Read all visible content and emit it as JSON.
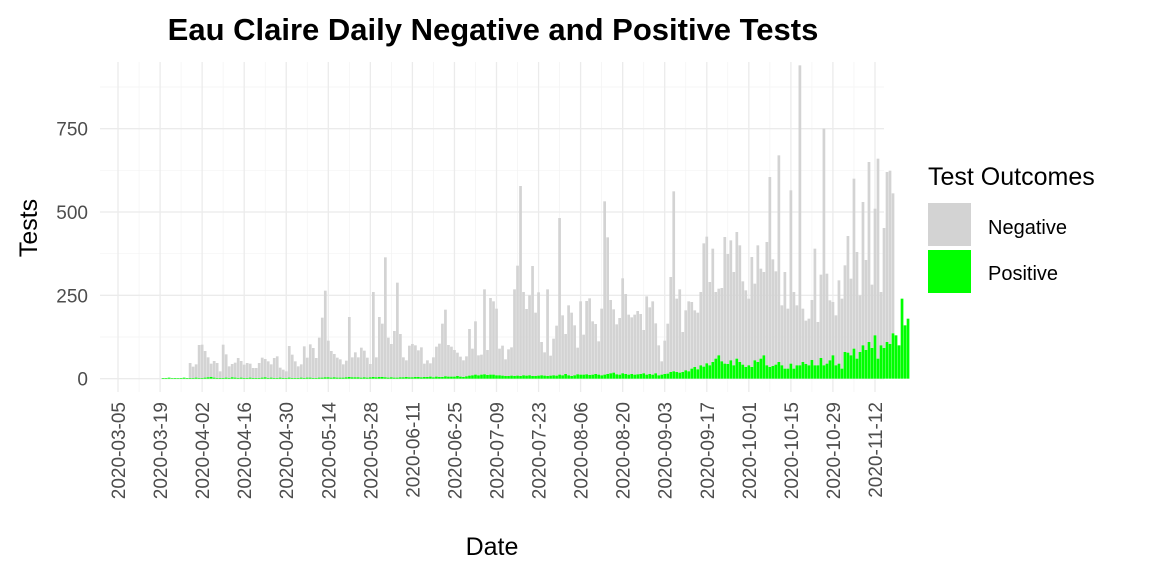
{
  "chart_data": {
    "type": "bar",
    "stacked": true,
    "title": "Eau Claire Daily Negative and Positive Tests",
    "xlabel": "Date",
    "ylabel": "Tests",
    "x_ticks": [
      "2020-03-05",
      "2020-03-19",
      "2020-04-02",
      "2020-04-16",
      "2020-04-30",
      "2020-05-14",
      "2020-05-28",
      "2020-06-11",
      "2020-06-25",
      "2020-07-09",
      "2020-07-23",
      "2020-08-06",
      "2020-08-20",
      "2020-09-03",
      "2020-09-17",
      "2020-10-01",
      "2020-10-15",
      "2020-10-29",
      "2020-11-12"
    ],
    "y_ticks": [
      0,
      250,
      500,
      750
    ],
    "ylim": [
      -40,
      950
    ],
    "xlim": [
      "2020-02-28",
      "2020-11-15"
    ],
    "grid": true,
    "legend": {
      "title": "Test Outcomes",
      "placement": "right",
      "entries": [
        {
          "name": "Negative",
          "color": "#d3d3d3"
        },
        {
          "name": "Positive",
          "color": "#00ff00"
        }
      ]
    },
    "start_date": "2020-03-15",
    "series": [
      {
        "name": "Negative",
        "color": "#d3d3d3",
        "values": [
          0,
          0,
          0,
          0,
          0,
          0,
          0,
          0,
          0,
          0,
          0,
          0,
          0,
          0,
          45,
          35,
          40,
          100,
          100,
          80,
          60,
          40,
          50,
          45,
          20,
          100,
          70,
          35,
          40,
          45,
          60,
          50,
          40,
          45,
          42,
          30,
          30,
          45,
          60,
          55,
          50,
          40,
          60,
          65,
          30,
          25,
          20,
          95,
          70,
          50,
          35,
          40,
          95,
          60,
          100,
          90,
          60,
          120,
          180,
          260,
          110,
          80,
          70,
          60,
          55,
          40,
          50,
          180,
          60,
          75,
          60,
          90,
          80,
          60,
          40,
          255,
          60,
          180,
          160,
          360,
          120,
          100,
          140,
          285,
          130,
          60,
          50,
          95,
          100,
          95,
          80,
          90,
          40,
          50,
          40,
          60,
          90,
          100,
          160,
          200,
          95,
          90,
          80,
          70,
          60,
          50,
          60,
          140,
          80,
          160,
          60,
          60,
          255,
          75,
          230,
          220,
          200,
          80,
          90,
          50,
          80,
          85,
          260,
          330,
          570,
          250,
          200,
          240,
          330,
          190,
          250,
          100,
          70,
          260,
          60,
          110,
          150,
          470,
          180,
          120,
          210,
          190,
          150,
          80,
          220,
          120,
          220,
          230,
          160,
          150,
          100,
          200,
          520,
          410,
          220,
          190,
          150,
          170,
          285,
          240,
          180,
          170,
          180,
          190,
          180,
          130,
          235,
          200,
          220,
          150,
          90,
          40,
          100,
          150,
          285,
          540,
          220,
          250,
          120,
          180,
          210,
          200,
          170,
          170,
          220,
          370,
          380,
          250,
          340,
          200,
          200,
          220,
          380,
          330,
          360,
          280,
          380,
          350,
          250,
          230,
          200,
          330,
          230,
          350,
          270,
          250,
          370,
          570,
          320,
          280,
          620,
          180,
          290,
          180,
          520,
          230,
          180,
          900,
          160,
          130,
          140,
          180,
          350,
          130,
          250,
          710,
          270,
          180,
          160,
          150,
          250,
          210,
          260,
          350,
          230,
          510,
          320,
          170,
          430,
          270,
          540,
          190,
          380,
          600,
          160,
          360,
          510,
          520,
          420
        ]
      },
      {
        "name": "Positive",
        "color": "#00ff00",
        "values": [
          0,
          0,
          0,
          0,
          0,
          2,
          2,
          3,
          1,
          2,
          1,
          2,
          3,
          2,
          2,
          1,
          3,
          1,
          2,
          3,
          4,
          5,
          3,
          2,
          2,
          2,
          3,
          2,
          4,
          3,
          2,
          3,
          2,
          2,
          3,
          2,
          2,
          2,
          3,
          4,
          2,
          3,
          2,
          2,
          3,
          2,
          2,
          3,
          2,
          2,
          2,
          3,
          2,
          3,
          3,
          2,
          2,
          3,
          3,
          4,
          4,
          3,
          4,
          3,
          3,
          3,
          4,
          5,
          4,
          4,
          4,
          3,
          4,
          3,
          4,
          5,
          4,
          5,
          5,
          4,
          3,
          4,
          3,
          3,
          4,
          4,
          5,
          4,
          4,
          5,
          5,
          4,
          5,
          5,
          6,
          4,
          6,
          5,
          5,
          7,
          6,
          6,
          6,
          8,
          6,
          5,
          7,
          9,
          10,
          12,
          10,
          12,
          13,
          11,
          12,
          12,
          10,
          10,
          9,
          8,
          8,
          9,
          8,
          9,
          8,
          10,
          9,
          10,
          8,
          8,
          9,
          10,
          9,
          8,
          9,
          10,
          9,
          12,
          10,
          14,
          10,
          8,
          10,
          13,
          12,
          12,
          13,
          11,
          12,
          14,
          12,
          10,
          12,
          14,
          16,
          18,
          13,
          12,
          16,
          14,
          12,
          14,
          12,
          13,
          14,
          16,
          12,
          14,
          12,
          16,
          10,
          12,
          14,
          15,
          20,
          22,
          20,
          18,
          20,
          25,
          22,
          30,
          35,
          28,
          40,
          36,
          46,
          40,
          50,
          60,
          70,
          52,
          45,
          44,
          55,
          40,
          60,
          50,
          42,
          35,
          40,
          35,
          55,
          50,
          60,
          70,
          40,
          35,
          38,
          42,
          50,
          40,
          30,
          30,
          45,
          30,
          40,
          40,
          50,
          44,
          40,
          56,
          40,
          40,
          62,
          40,
          45,
          55,
          70,
          40,
          45,
          30,
          80,
          78,
          70,
          90,
          60,
          80,
          100,
          86,
          110,
          92,
          130,
          60,
          100,
          92,
          110,
          104,
          136,
          130,
          100,
          240,
          160,
          180
        ]
      }
    ]
  }
}
